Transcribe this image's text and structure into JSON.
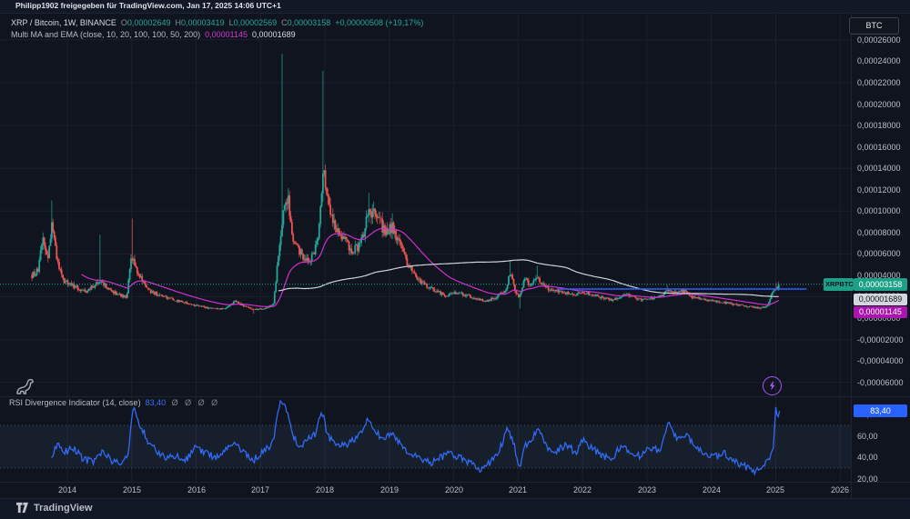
{
  "header": {
    "attribution": "Philipp1902 freigegeben für TradingView.com, Jan 17, 2025 14:06 UTC+1"
  },
  "legend": {
    "symbol": "XRP / Bitcoin, 1W, BINANCE",
    "ohlc": {
      "o_label": "O",
      "o_value": "0,00002649",
      "h_label": "H",
      "h_value": "0,00003419",
      "l_label": "L",
      "l_value": "0,00002569",
      "c_label": "C",
      "c_value": "0,00003158",
      "change": "+0,00000508 (+19,17%)"
    },
    "ma": {
      "name": "Multi MA and EMA (close, 10, 20, 100, 100, 50, 200)",
      "value_magenta": "0,00001145",
      "value_white": "0,00001689"
    },
    "rsi": {
      "name": "RSI Divergence Indicator (14, close)",
      "value": "83,40",
      "empty_values": "Ø Ø Ø Ø"
    }
  },
  "price_axis": {
    "unit_button": "BTC",
    "labels": [
      {
        "text": "0,00026000",
        "value": 26
      },
      {
        "text": "0,00024000",
        "value": 24
      },
      {
        "text": "0,00022000",
        "value": 22
      },
      {
        "text": "0,00020000",
        "value": 20
      },
      {
        "text": "0,00018000",
        "value": 18
      },
      {
        "text": "0,00016000",
        "value": 16
      },
      {
        "text": "0,00014000",
        "value": 14
      },
      {
        "text": "0,00012000",
        "value": 12
      },
      {
        "text": "0,00010000",
        "value": 10
      },
      {
        "text": "0,00008000",
        "value": 8
      },
      {
        "text": "0,00006000",
        "value": 6
      },
      {
        "text": "0,00004000",
        "value": 4
      },
      {
        "text": "0,00002000",
        "value": 2
      },
      {
        "text": "0,00000000",
        "value": 0
      },
      {
        "text": "-0,00002000",
        "value": -2
      },
      {
        "text": "-0,00004000",
        "value": -4
      },
      {
        "text": "-0,00006000",
        "value": -6
      }
    ],
    "price_badge": "0,00003158",
    "symbol_chip": "XRPBTC",
    "white_ma_badge": "0,00001689",
    "magenta_ma_badge": "0,00001145"
  },
  "rsi_axis": {
    "labels": [
      {
        "text": "80,00",
        "value": 80
      },
      {
        "text": "60,00",
        "value": 60
      },
      {
        "text": "40,00",
        "value": 40
      },
      {
        "text": "20,00",
        "value": 20
      }
    ],
    "value_badge": "83,40"
  },
  "time_axis": {
    "years": [
      2014,
      2015,
      2016,
      2017,
      2018,
      2019,
      2020,
      2021,
      2022,
      2023,
      2024,
      2025,
      2026
    ]
  },
  "footer": {
    "brand": "TradingView"
  },
  "colors": {
    "background": "#0f141e",
    "grid": "#1a2030",
    "green": "#26a69a",
    "red": "#ef5350",
    "magenta_ma": "#cf30cf",
    "white_ma": "#ccd0d9",
    "blue_line": "#2d5ffe",
    "rsi_line": "#316af5",
    "rsi_band_fill": "rgba(96,134,189,0.10)",
    "band_dotted": "#56606f",
    "teal_badge_bg": "#1ca188",
    "gray_badge_bg": "#d4d6dd",
    "magenta_badge_bg": "#ad13ad",
    "rsi_badge_bg": "#2962ff",
    "purple_marker": "#a855f7"
  },
  "chart_data": {
    "type": "candlestick",
    "title": "XRP / Bitcoin, 1W, BINANCE",
    "price_unit": "1e-5 BTC (3.158 means 0.00003158 BTC)",
    "x_range": [
      2013.45,
      2026.25
    ],
    "price_pane_value_range": [
      -7.4,
      28.6
    ],
    "grid_price_values": [
      26,
      22,
      18,
      14,
      10,
      6,
      2,
      -2,
      -6
    ],
    "last_candle": {
      "open": 2.649,
      "high": 3.419,
      "low": 2.569,
      "close": 3.158,
      "change_pct": 19.17
    },
    "candles_keyframes": [
      [
        2013.45,
        4.0,
        null,
        null
      ],
      [
        2013.55,
        4.4,
        null,
        null
      ],
      [
        2013.62,
        7.5,
        null,
        null
      ],
      [
        2013.7,
        5.5,
        null,
        null
      ],
      [
        2013.76,
        8.8,
        11.0,
        null
      ],
      [
        2013.85,
        5.0,
        null,
        null
      ],
      [
        2013.95,
        3.4,
        null,
        null
      ],
      [
        2014.1,
        3.0,
        null,
        null
      ],
      [
        2014.3,
        2.4,
        null,
        null
      ],
      [
        2014.5,
        3.6,
        7.8,
        null
      ],
      [
        2014.65,
        2.6,
        null,
        null
      ],
      [
        2014.8,
        2.2,
        null,
        null
      ],
      [
        2014.92,
        1.9,
        null,
        null
      ],
      [
        2015.0,
        5.8,
        9.3,
        null
      ],
      [
        2015.1,
        4.2,
        null,
        null
      ],
      [
        2015.25,
        2.6,
        null,
        null
      ],
      [
        2015.45,
        2.1,
        null,
        null
      ],
      [
        2015.65,
        1.7,
        null,
        null
      ],
      [
        2015.85,
        1.4,
        null,
        null
      ],
      [
        2016.05,
        1.1,
        null,
        null
      ],
      [
        2016.25,
        0.9,
        null,
        null
      ],
      [
        2016.45,
        0.85,
        null,
        null
      ],
      [
        2016.6,
        1.6,
        null,
        null
      ],
      [
        2016.75,
        1.1,
        null,
        null
      ],
      [
        2016.9,
        0.8,
        null,
        0.4
      ],
      [
        2017.05,
        0.9,
        null,
        null
      ],
      [
        2017.2,
        1.3,
        null,
        null
      ],
      [
        2017.34,
        9.5,
        24.7,
        null
      ],
      [
        2017.42,
        11.5,
        null,
        null
      ],
      [
        2017.52,
        7.0,
        null,
        null
      ],
      [
        2017.62,
        6.2,
        null,
        null
      ],
      [
        2017.72,
        5.4,
        null,
        null
      ],
      [
        2017.82,
        5.8,
        null,
        null
      ],
      [
        2017.9,
        7.5,
        null,
        null
      ],
      [
        2017.97,
        14.5,
        23.1,
        null
      ],
      [
        2018.05,
        11.0,
        null,
        null
      ],
      [
        2018.15,
        9.0,
        null,
        null
      ],
      [
        2018.3,
        7.2,
        null,
        null
      ],
      [
        2018.45,
        6.2,
        null,
        null
      ],
      [
        2018.6,
        7.5,
        null,
        null
      ],
      [
        2018.68,
        10.5,
        11.7,
        null
      ],
      [
        2018.8,
        9.2,
        null,
        null
      ],
      [
        2018.95,
        8.2,
        null,
        null
      ],
      [
        2019.05,
        8.6,
        9.8,
        null
      ],
      [
        2019.15,
        7.0,
        null,
        null
      ],
      [
        2019.3,
        4.8,
        null,
        null
      ],
      [
        2019.45,
        3.6,
        null,
        null
      ],
      [
        2019.6,
        2.9,
        null,
        null
      ],
      [
        2019.75,
        2.4,
        null,
        null
      ],
      [
        2019.9,
        2.1,
        null,
        null
      ],
      [
        2020.05,
        2.4,
        null,
        null
      ],
      [
        2020.2,
        2.1,
        null,
        null
      ],
      [
        2020.35,
        1.8,
        null,
        null
      ],
      [
        2020.5,
        1.6,
        null,
        null
      ],
      [
        2020.65,
        1.9,
        null,
        null
      ],
      [
        2020.8,
        2.6,
        null,
        null
      ],
      [
        2020.88,
        4.3,
        5.4,
        null
      ],
      [
        2020.96,
        2.4,
        null,
        null
      ],
      [
        2021.02,
        1.9,
        null,
        0.9
      ],
      [
        2021.1,
        3.6,
        null,
        null
      ],
      [
        2021.2,
        3.1,
        null,
        null
      ],
      [
        2021.3,
        3.8,
        4.9,
        null
      ],
      [
        2021.42,
        2.9,
        null,
        null
      ],
      [
        2021.55,
        2.5,
        null,
        null
      ],
      [
        2021.7,
        2.4,
        null,
        null
      ],
      [
        2021.85,
        2.1,
        null,
        null
      ],
      [
        2022.0,
        2.4,
        null,
        null
      ],
      [
        2022.15,
        2.2,
        null,
        null
      ],
      [
        2022.3,
        1.9,
        null,
        null
      ],
      [
        2022.45,
        1.7,
        null,
        null
      ],
      [
        2022.6,
        2.0,
        null,
        null
      ],
      [
        2022.75,
        2.2,
        null,
        null
      ],
      [
        2022.9,
        1.7,
        null,
        null
      ],
      [
        2023.05,
        1.8,
        null,
        null
      ],
      [
        2023.2,
        2.0,
        null,
        null
      ],
      [
        2023.32,
        2.5,
        3.1,
        null
      ],
      [
        2023.45,
        2.3,
        null,
        null
      ],
      [
        2023.55,
        2.6,
        null,
        null
      ],
      [
        2023.7,
        2.0,
        null,
        null
      ],
      [
        2023.85,
        1.8,
        null,
        null
      ],
      [
        2024.0,
        1.6,
        null,
        null
      ],
      [
        2024.15,
        1.5,
        null,
        null
      ],
      [
        2024.3,
        1.35,
        null,
        null
      ],
      [
        2024.45,
        1.2,
        null,
        null
      ],
      [
        2024.6,
        1.05,
        null,
        null
      ],
      [
        2024.75,
        0.95,
        null,
        0.78
      ],
      [
        2024.87,
        1.1,
        null,
        null
      ],
      [
        2024.94,
        2.2,
        null,
        null
      ],
      [
        2025.0,
        2.65,
        3.3,
        null
      ],
      [
        2025.05,
        3.158,
        3.419,
        2.569
      ]
    ],
    "moving_averages": [
      {
        "name": "EMA",
        "period": 45,
        "color_key": "magenta_ma",
        "current_value": 1.145
      },
      {
        "name": "SMA",
        "period": 200,
        "color_key": "white_ma",
        "current_value": 1.689
      }
    ],
    "overlays": {
      "current_price_line": {
        "value": 3.158,
        "style": "dotted",
        "color_key": "green"
      },
      "blue_horizontal_line": {
        "value": 2.72,
        "t_start": 2021.6,
        "t_end": 2025.48,
        "color_key": "blue_line"
      }
    },
    "rsi_pane": {
      "type": "line",
      "name": "RSI Divergence Indicator (14, close)",
      "current": 83.4,
      "overbought": 70,
      "oversold": 30,
      "value_range": [
        17,
        96
      ],
      "keypoints": [
        [
          2013.75,
          40
        ],
        [
          2013.85,
          52
        ],
        [
          2013.95,
          45
        ],
        [
          2014.1,
          48
        ],
        [
          2014.25,
          38
        ],
        [
          2014.4,
          36
        ],
        [
          2014.55,
          44
        ],
        [
          2014.7,
          37
        ],
        [
          2014.85,
          33
        ],
        [
          2014.95,
          45
        ],
        [
          2015.02,
          87
        ],
        [
          2015.12,
          72
        ],
        [
          2015.25,
          55
        ],
        [
          2015.4,
          45
        ],
        [
          2015.55,
          40
        ],
        [
          2015.7,
          42
        ],
        [
          2015.85,
          38
        ],
        [
          2016.0,
          50
        ],
        [
          2016.15,
          44
        ],
        [
          2016.3,
          40
        ],
        [
          2016.45,
          46
        ],
        [
          2016.6,
          54
        ],
        [
          2016.75,
          44
        ],
        [
          2016.9,
          38
        ],
        [
          2017.05,
          45
        ],
        [
          2017.2,
          55
        ],
        [
          2017.3,
          91
        ],
        [
          2017.38,
          88
        ],
        [
          2017.5,
          62
        ],
        [
          2017.6,
          50
        ],
        [
          2017.72,
          56
        ],
        [
          2017.85,
          62
        ],
        [
          2017.95,
          83
        ],
        [
          2018.05,
          60
        ],
        [
          2018.2,
          50
        ],
        [
          2018.35,
          52
        ],
        [
          2018.5,
          58
        ],
        [
          2018.68,
          77
        ],
        [
          2018.8,
          62
        ],
        [
          2018.95,
          58
        ],
        [
          2019.05,
          64
        ],
        [
          2019.2,
          50
        ],
        [
          2019.35,
          42
        ],
        [
          2019.5,
          38
        ],
        [
          2019.65,
          34
        ],
        [
          2019.8,
          40
        ],
        [
          2019.95,
          44
        ],
        [
          2020.1,
          40
        ],
        [
          2020.25,
          34
        ],
        [
          2020.4,
          29
        ],
        [
          2020.55,
          35
        ],
        [
          2020.7,
          46
        ],
        [
          2020.85,
          68
        ],
        [
          2020.95,
          48
        ],
        [
          2021.02,
          30
        ],
        [
          2021.12,
          52
        ],
        [
          2021.22,
          58
        ],
        [
          2021.32,
          65
        ],
        [
          2021.45,
          50
        ],
        [
          2021.6,
          46
        ],
        [
          2021.75,
          52
        ],
        [
          2021.9,
          44
        ],
        [
          2022.0,
          56
        ],
        [
          2022.15,
          48
        ],
        [
          2022.3,
          42
        ],
        [
          2022.45,
          38
        ],
        [
          2022.6,
          52
        ],
        [
          2022.75,
          46
        ],
        [
          2022.9,
          40
        ],
        [
          2023.05,
          50
        ],
        [
          2023.2,
          46
        ],
        [
          2023.35,
          74
        ],
        [
          2023.45,
          58
        ],
        [
          2023.6,
          62
        ],
        [
          2023.75,
          50
        ],
        [
          2023.9,
          44
        ],
        [
          2024.05,
          40
        ],
        [
          2024.2,
          44
        ],
        [
          2024.35,
          36
        ],
        [
          2024.5,
          32
        ],
        [
          2024.65,
          27
        ],
        [
          2024.78,
          30
        ],
        [
          2024.88,
          38
        ],
        [
          2024.96,
          45
        ],
        [
          2025.0,
          87
        ],
        [
          2025.03,
          76
        ],
        [
          2025.06,
          83.4
        ]
      ]
    }
  }
}
